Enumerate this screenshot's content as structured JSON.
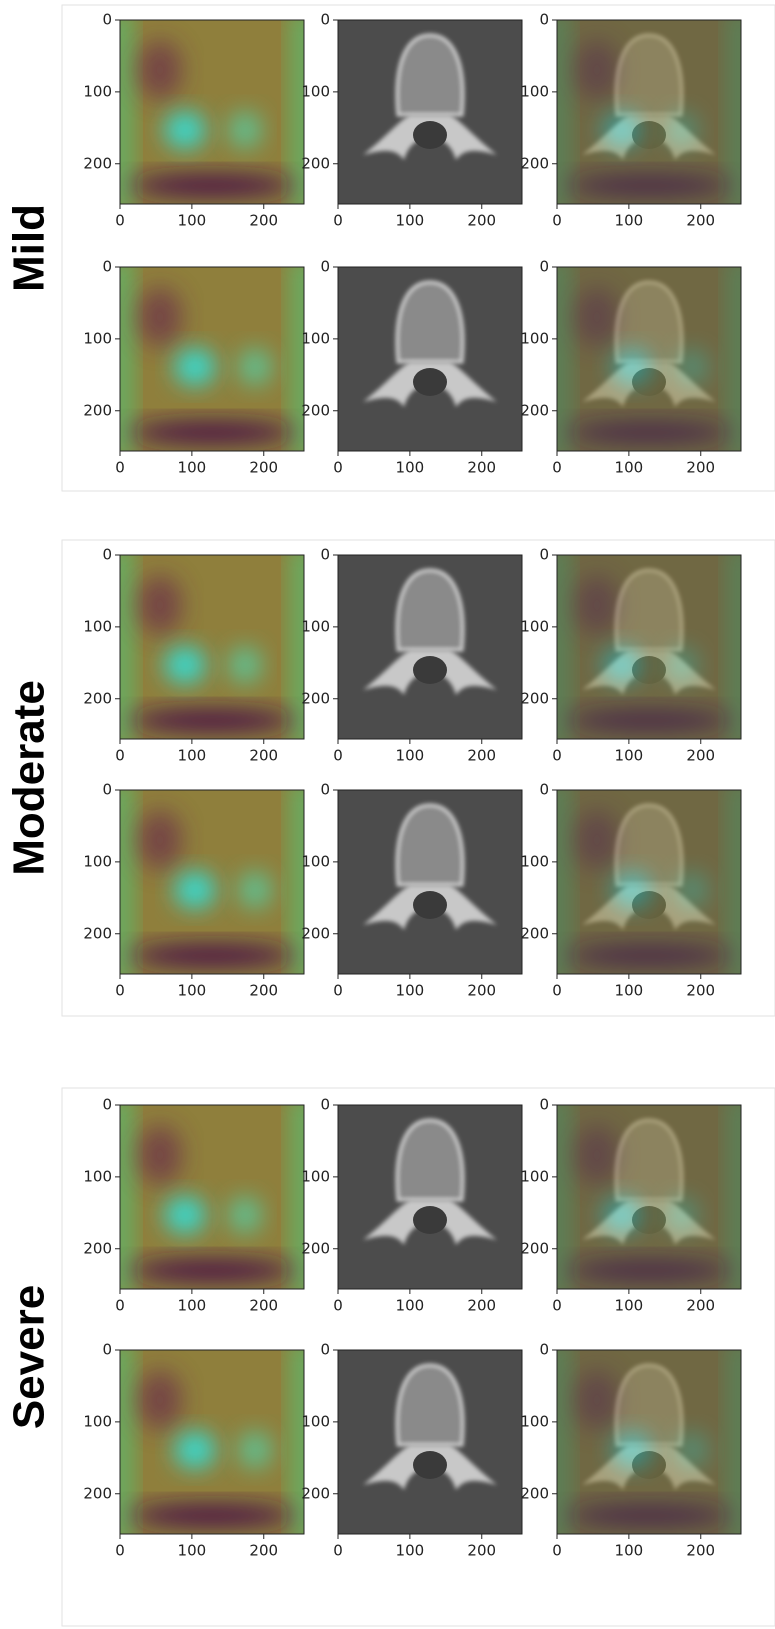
{
  "groups": [
    {
      "label": "Mild"
    },
    {
      "label": "Moderate"
    },
    {
      "label": "Severe"
    }
  ],
  "axes": {
    "xlim": [
      0,
      256
    ],
    "ylim": [
      0,
      256
    ],
    "xticks": [
      0,
      100,
      200
    ],
    "yticks": [
      0,
      100,
      200
    ]
  }
}
